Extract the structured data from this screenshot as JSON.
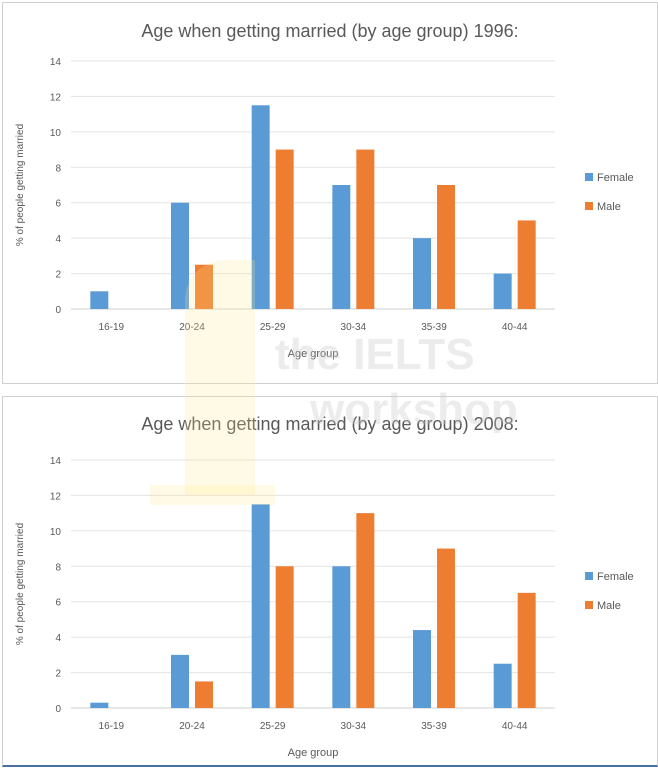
{
  "watermark": {
    "text_line1": "the IELTS",
    "text_line2": "workshop",
    "logo_numeral": "1"
  },
  "colors": {
    "female": "#5B9BD5",
    "male": "#ED7D31",
    "grid": "#e3e3e3",
    "text": "#595959"
  },
  "chart_data": [
    {
      "type": "bar",
      "title": "Age when getting married (by age group) 1996:",
      "xlabel": "Age group",
      "ylabel": "% of people getting married",
      "ylim": [
        0,
        14
      ],
      "yticks": [
        "0",
        "2",
        "4",
        "6",
        "8",
        "10",
        "12",
        "14"
      ],
      "grid": true,
      "legend": "right",
      "categories": [
        "16-19",
        "20-24",
        "25-29",
        "30-34",
        "35-39",
        "40-44"
      ],
      "series": [
        {
          "name": "Female",
          "values": [
            1,
            6,
            11.5,
            7,
            4,
            2
          ]
        },
        {
          "name": "Male",
          "values": [
            0,
            2.5,
            9,
            9,
            7,
            5
          ]
        }
      ]
    },
    {
      "type": "bar",
      "title": "Age when getting married (by age group) 2008:",
      "xlabel": "Age group",
      "ylabel": "% of people getting married",
      "ylim": [
        0,
        14
      ],
      "yticks": [
        "0",
        "2",
        "4",
        "6",
        "8",
        "10",
        "12",
        "14"
      ],
      "grid": true,
      "legend": "right",
      "categories": [
        "16-19",
        "20-24",
        "25-29",
        "30-34",
        "35-39",
        "40-44"
      ],
      "series": [
        {
          "name": "Female",
          "values": [
            0.3,
            3,
            11.5,
            8,
            4.4,
            2.5
          ]
        },
        {
          "name": "Male",
          "values": [
            0,
            1.5,
            8,
            11,
            9,
            6.5
          ]
        }
      ]
    }
  ]
}
